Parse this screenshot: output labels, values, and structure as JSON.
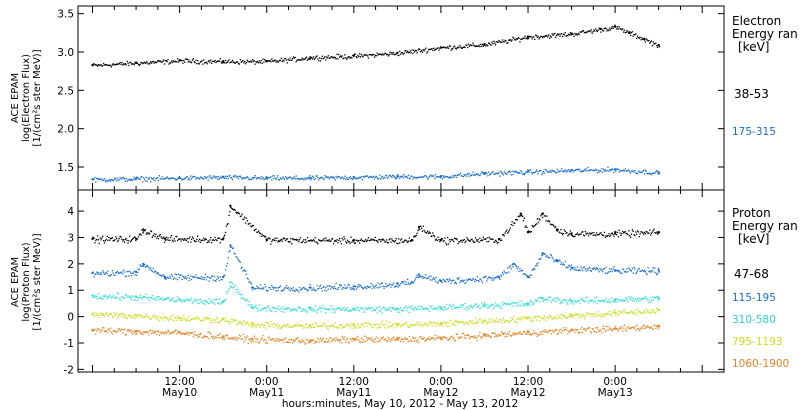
{
  "chart_data": [
    {
      "type": "scatter",
      "panel": "electron",
      "ylabel": [
        "ACE EPAM",
        "log(Electron Flux)",
        "[1/(cm²s ster MeV)]"
      ],
      "ylim": [
        1.2,
        3.6
      ],
      "yticks": [
        1.5,
        2.0,
        2.5,
        3.0,
        3.5
      ],
      "yticklabels": [
        "1.5",
        "2.0",
        "2.5",
        "3.0",
        "3.5"
      ],
      "legend_title": [
        "Electron",
        "Energy ran",
        "[keV]"
      ],
      "series": [
        {
          "name": "38-53",
          "color": "#000000",
          "x": [
            0,
            6,
            12,
            18,
            24,
            30,
            36,
            42,
            48,
            54,
            60,
            66,
            70,
            72,
            74,
            76,
            78
          ],
          "y": [
            2.83,
            2.86,
            2.89,
            2.88,
            2.88,
            2.93,
            2.95,
            2.99,
            3.06,
            3.1,
            3.2,
            3.24,
            3.3,
            3.33,
            3.25,
            3.17,
            3.09
          ]
        },
        {
          "name": "175-315",
          "color": "#1a6fd1",
          "x": [
            0,
            6,
            12,
            18,
            24,
            30,
            36,
            42,
            48,
            54,
            60,
            66,
            72,
            78
          ],
          "y": [
            1.34,
            1.35,
            1.36,
            1.37,
            1.36,
            1.36,
            1.37,
            1.38,
            1.38,
            1.42,
            1.44,
            1.46,
            1.47,
            1.43
          ]
        }
      ]
    },
    {
      "type": "scatter",
      "panel": "proton",
      "ylabel": [
        "ACE EPAM",
        "log(Proton Flux)",
        "[1/(cm²s ster MeV)]"
      ],
      "ylim": [
        -2.1,
        4.8
      ],
      "yticks": [
        -2,
        -1,
        0,
        1,
        2,
        3,
        4
      ],
      "yticklabels": [
        "-2",
        "-1",
        "0",
        "1",
        "2",
        "3",
        "4"
      ],
      "legend_title": [
        "Proton",
        "Energy ran",
        "[keV]"
      ],
      "series": [
        {
          "name": "47-68",
          "color": "#000000",
          "x": [
            0,
            6,
            7,
            10,
            18,
            19,
            24,
            36,
            44,
            45,
            48,
            56,
            59,
            60,
            62,
            64,
            66,
            72,
            78
          ],
          "y": [
            2.95,
            2.95,
            3.3,
            2.95,
            2.95,
            4.2,
            2.92,
            2.9,
            2.9,
            3.4,
            2.9,
            2.93,
            3.9,
            3.2,
            3.9,
            3.3,
            3.15,
            3.15,
            3.2
          ]
        },
        {
          "name": "115-195",
          "color": "#1a6fd1",
          "x": [
            0,
            6,
            7,
            10,
            18,
            19,
            22,
            30,
            36,
            42,
            44,
            45,
            48,
            56,
            58,
            60,
            62,
            64,
            66,
            72,
            78
          ],
          "y": [
            1.65,
            1.7,
            2.0,
            1.5,
            1.5,
            2.7,
            1.1,
            1.1,
            1.15,
            1.25,
            1.3,
            1.6,
            1.35,
            1.5,
            2.0,
            1.5,
            2.4,
            2.1,
            1.85,
            1.75,
            1.75
          ]
        },
        {
          "name": "310-580",
          "color": "#2fe0d6",
          "x": [
            0,
            6,
            12,
            18,
            19,
            22,
            30,
            36,
            42,
            48,
            54,
            60,
            62,
            66,
            72,
            78
          ],
          "y": [
            0.8,
            0.75,
            0.65,
            0.55,
            1.3,
            0.35,
            0.3,
            0.3,
            0.3,
            0.35,
            0.45,
            0.5,
            0.7,
            0.6,
            0.65,
            0.7
          ]
        },
        {
          "name": "795-1193",
          "color": "#c8e01e",
          "x": [
            0,
            6,
            12,
            18,
            22,
            30,
            36,
            42,
            48,
            54,
            60,
            66,
            72,
            78
          ],
          "y": [
            0.1,
            0.05,
            -0.05,
            -0.1,
            -0.3,
            -0.35,
            -0.3,
            -0.3,
            -0.25,
            -0.15,
            -0.05,
            0.05,
            0.15,
            0.25
          ]
        },
        {
          "name": "1060-1900",
          "color": "#e6821e",
          "x": [
            0,
            6,
            12,
            18,
            22,
            30,
            36,
            42,
            48,
            54,
            60,
            66,
            72,
            78
          ],
          "y": [
            -0.5,
            -0.55,
            -0.6,
            -0.75,
            -0.85,
            -0.9,
            -0.85,
            -0.85,
            -0.8,
            -0.7,
            -0.6,
            -0.5,
            -0.45,
            -0.35
          ]
        }
      ]
    }
  ],
  "x_axis": {
    "ticks": [
      {
        "h": 12,
        "time": "12:00",
        "date": "May10"
      },
      {
        "h": 24,
        "time": "0:00",
        "date": "May11"
      },
      {
        "h": 36,
        "time": "12:00",
        "date": "May11"
      },
      {
        "h": 48,
        "time": "0:00",
        "date": "May12"
      },
      {
        "h": 60,
        "time": "12:00",
        "date": "May12"
      },
      {
        "h": 72,
        "time": "0:00",
        "date": "May13"
      }
    ],
    "xlim_hours": [
      -2,
      87
    ],
    "minor_step_hours": 3,
    "xlabel": "hours:minutes, May 10, 2012 - May 13, 2012"
  }
}
